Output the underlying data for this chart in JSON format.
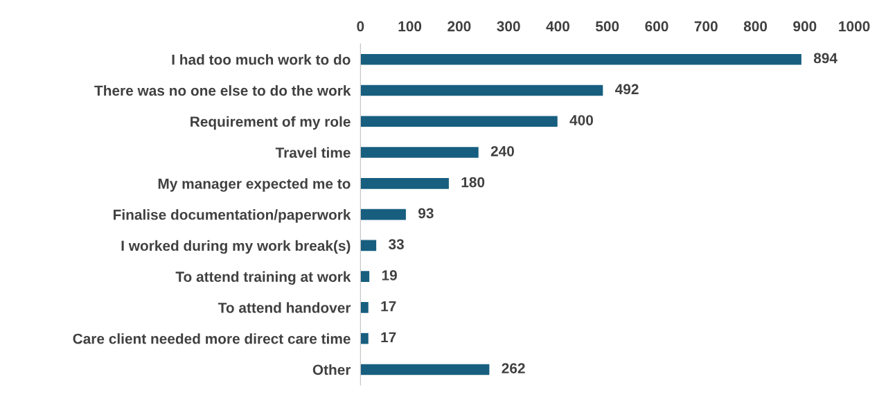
{
  "chart_data": {
    "type": "bar",
    "orientation": "horizontal",
    "categories": [
      "I had too much work to do",
      "There was no one else to do the work",
      "Requirement of my role",
      "Travel time",
      "My manager expected me to",
      "Finalise documentation/paperwork",
      "I worked during my work break(s)",
      "To attend training at work",
      "To attend handover",
      "Care client needed more direct care time",
      "Other"
    ],
    "values": [
      894,
      492,
      400,
      240,
      180,
      93,
      33,
      19,
      17,
      17,
      262
    ],
    "color": "#175e7f",
    "xlim": [
      0,
      1000
    ],
    "xticks": [
      0,
      100,
      200,
      300,
      400,
      500,
      600,
      700,
      800,
      900,
      1000
    ],
    "data_labels": true,
    "grid": false,
    "legend": false
  }
}
